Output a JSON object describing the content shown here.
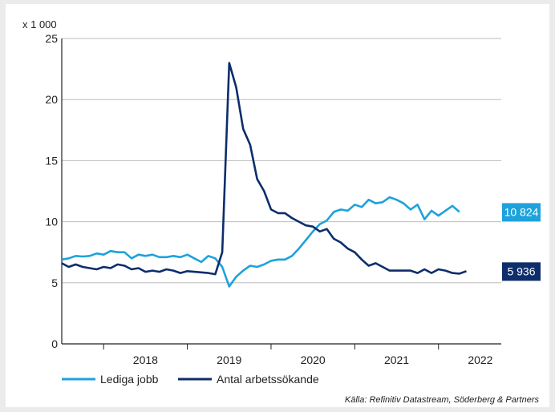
{
  "chart_data": {
    "type": "line",
    "unit_label": "x 1 000",
    "ylim": [
      0,
      25
    ],
    "yticks": [
      0,
      5,
      10,
      15,
      20,
      25
    ],
    "x_range": [
      "2017-07",
      "2022-10"
    ],
    "xticks": [
      "2018",
      "2019",
      "2020",
      "2021",
      "2022"
    ],
    "grid": "horizontal",
    "legend_position": "bottom-left",
    "source": "Källa: Refinitiv Datastream, Söderberg & Partners",
    "series": [
      {
        "name": "Lediga jobb",
        "color": "#1ea2dc",
        "end_label": "10 824",
        "points": [
          [
            "2017-07",
            6.9
          ],
          [
            "2017-08",
            7.0
          ],
          [
            "2017-09",
            7.2
          ],
          [
            "2017-10",
            7.15
          ],
          [
            "2017-11",
            7.2
          ],
          [
            "2017-12",
            7.4
          ],
          [
            "2018-01",
            7.3
          ],
          [
            "2018-02",
            7.6
          ],
          [
            "2018-03",
            7.5
          ],
          [
            "2018-04",
            7.5
          ],
          [
            "2018-05",
            7.0
          ],
          [
            "2018-06",
            7.3
          ],
          [
            "2018-07",
            7.2
          ],
          [
            "2018-08",
            7.3
          ],
          [
            "2018-09",
            7.1
          ],
          [
            "2018-10",
            7.1
          ],
          [
            "2018-11",
            7.2
          ],
          [
            "2018-12",
            7.1
          ],
          [
            "2019-01",
            7.3
          ],
          [
            "2019-02",
            7.0
          ],
          [
            "2019-03",
            6.7
          ],
          [
            "2019-04",
            7.2
          ],
          [
            "2019-05",
            7.0
          ],
          [
            "2019-06",
            6.3
          ],
          [
            "2019-07",
            4.7
          ],
          [
            "2019-08",
            5.5
          ],
          [
            "2019-09",
            6.0
          ],
          [
            "2019-10",
            6.4
          ],
          [
            "2019-11",
            6.3
          ],
          [
            "2019-12",
            6.5
          ],
          [
            "2020-01",
            6.8
          ],
          [
            "2020-02",
            6.9
          ],
          [
            "2020-03",
            6.9
          ],
          [
            "2020-04",
            7.2
          ],
          [
            "2020-05",
            7.8
          ],
          [
            "2020-06",
            8.5
          ],
          [
            "2020-07",
            9.2
          ],
          [
            "2020-08",
            9.8
          ],
          [
            "2020-09",
            10.1
          ],
          [
            "2020-10",
            10.8
          ],
          [
            "2020-11",
            11.0
          ],
          [
            "2020-12",
            10.9
          ],
          [
            "2021-01",
            11.4
          ],
          [
            "2021-02",
            11.2
          ],
          [
            "2021-03",
            11.8
          ],
          [
            "2021-04",
            11.5
          ],
          [
            "2021-05",
            11.6
          ],
          [
            "2021-06",
            12.0
          ],
          [
            "2021-07",
            11.8
          ],
          [
            "2021-08",
            11.5
          ],
          [
            "2021-09",
            11.0
          ],
          [
            "2021-10",
            11.4
          ],
          [
            "2021-11",
            10.2
          ],
          [
            "2021-12",
            10.9
          ],
          [
            "2022-01",
            10.5
          ],
          [
            "2022-02",
            10.9
          ],
          [
            "2022-03",
            11.3
          ],
          [
            "2022-04",
            10.8
          ]
        ]
      },
      {
        "name": "Antal arbetssökande",
        "color": "#0d2d6b",
        "end_label": "5 936",
        "points": [
          [
            "2017-07",
            6.6
          ],
          [
            "2017-08",
            6.3
          ],
          [
            "2017-09",
            6.5
          ],
          [
            "2017-10",
            6.3
          ],
          [
            "2017-11",
            6.2
          ],
          [
            "2017-12",
            6.1
          ],
          [
            "2018-01",
            6.3
          ],
          [
            "2018-02",
            6.2
          ],
          [
            "2018-03",
            6.5
          ],
          [
            "2018-04",
            6.4
          ],
          [
            "2018-05",
            6.1
          ],
          [
            "2018-06",
            6.2
          ],
          [
            "2018-07",
            5.9
          ],
          [
            "2018-08",
            6.0
          ],
          [
            "2018-09",
            5.9
          ],
          [
            "2018-10",
            6.1
          ],
          [
            "2018-11",
            6.0
          ],
          [
            "2018-12",
            5.8
          ],
          [
            "2019-01",
            5.95
          ],
          [
            "2019-02",
            5.9
          ],
          [
            "2019-03",
            5.85
          ],
          [
            "2019-04",
            5.8
          ],
          [
            "2019-05",
            5.7
          ],
          [
            "2019-06",
            7.5
          ],
          [
            "2019-07",
            23.0
          ],
          [
            "2019-08",
            21.0
          ],
          [
            "2019-09",
            17.6
          ],
          [
            "2019-10",
            16.3
          ],
          [
            "2019-11",
            13.5
          ],
          [
            "2019-12",
            12.5
          ],
          [
            "2020-01",
            11.0
          ],
          [
            "2020-02",
            10.7
          ],
          [
            "2020-03",
            10.7
          ],
          [
            "2020-04",
            10.3
          ],
          [
            "2020-05",
            10.0
          ],
          [
            "2020-06",
            9.7
          ],
          [
            "2020-07",
            9.6
          ],
          [
            "2020-08",
            9.2
          ],
          [
            "2020-09",
            9.4
          ],
          [
            "2020-10",
            8.6
          ],
          [
            "2020-11",
            8.3
          ],
          [
            "2020-12",
            7.8
          ],
          [
            "2021-01",
            7.5
          ],
          [
            "2021-02",
            6.9
          ],
          [
            "2021-03",
            6.4
          ],
          [
            "2021-04",
            6.6
          ],
          [
            "2021-05",
            6.3
          ],
          [
            "2021-06",
            6.0
          ],
          [
            "2021-07",
            6.0
          ],
          [
            "2021-08",
            6.0
          ],
          [
            "2021-09",
            6.0
          ],
          [
            "2021-10",
            5.8
          ],
          [
            "2021-11",
            6.1
          ],
          [
            "2021-12",
            5.8
          ],
          [
            "2022-01",
            6.1
          ],
          [
            "2022-02",
            6.0
          ],
          [
            "2022-03",
            5.8
          ],
          [
            "2022-04",
            5.75
          ],
          [
            "2022-05",
            5.95
          ]
        ]
      }
    ]
  }
}
